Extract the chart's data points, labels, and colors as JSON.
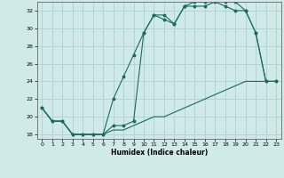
{
  "xlabel": "Humidex (Indice chaleur)",
  "background_color": "#d0eaea",
  "line_color": "#1a6b5a",
  "grid_color": "#a8cccc",
  "xlim": [
    -0.5,
    23.5
  ],
  "ylim": [
    17.5,
    33.0
  ],
  "yticks": [
    18,
    20,
    22,
    24,
    26,
    28,
    30,
    32
  ],
  "xticks": [
    0,
    1,
    2,
    3,
    4,
    5,
    6,
    7,
    8,
    9,
    10,
    11,
    12,
    13,
    14,
    15,
    16,
    17,
    18,
    19,
    20,
    21,
    22,
    23
  ],
  "line1_x": [
    0,
    1,
    2,
    3,
    4,
    5,
    6,
    7,
    8,
    9,
    10,
    11,
    12,
    13,
    14,
    15,
    16,
    17,
    18,
    19,
    20,
    21,
    22,
    23
  ],
  "line1_y": [
    21.0,
    19.5,
    19.5,
    18.0,
    18.0,
    18.0,
    18.0,
    22.0,
    24.5,
    27.0,
    29.5,
    31.5,
    31.0,
    30.5,
    32.5,
    33.0,
    33.0,
    33.5,
    33.0,
    33.0,
    32.0,
    29.5,
    24.0,
    24.0
  ],
  "line2_x": [
    0,
    1,
    2,
    3,
    4,
    5,
    6,
    7,
    8,
    9,
    10,
    11,
    12,
    13,
    14,
    15,
    16,
    17,
    18,
    19,
    20,
    21,
    22,
    23
  ],
  "line2_y": [
    21.0,
    19.5,
    19.5,
    18.0,
    18.0,
    18.0,
    18.0,
    19.0,
    19.0,
    19.5,
    29.5,
    31.5,
    31.5,
    30.5,
    32.5,
    32.5,
    32.5,
    33.0,
    32.5,
    32.0,
    32.0,
    29.5,
    24.0,
    24.0
  ],
  "line3_x": [
    0,
    1,
    2,
    3,
    4,
    5,
    6,
    7,
    8,
    9,
    10,
    11,
    12,
    13,
    14,
    15,
    16,
    17,
    18,
    19,
    20,
    21,
    22,
    23
  ],
  "line3_y": [
    21.0,
    19.5,
    19.5,
    18.0,
    18.0,
    18.0,
    18.0,
    18.5,
    18.5,
    19.0,
    19.5,
    20.0,
    20.0,
    20.5,
    21.0,
    21.5,
    22.0,
    22.5,
    23.0,
    23.5,
    24.0,
    24.0,
    24.0,
    24.0
  ]
}
